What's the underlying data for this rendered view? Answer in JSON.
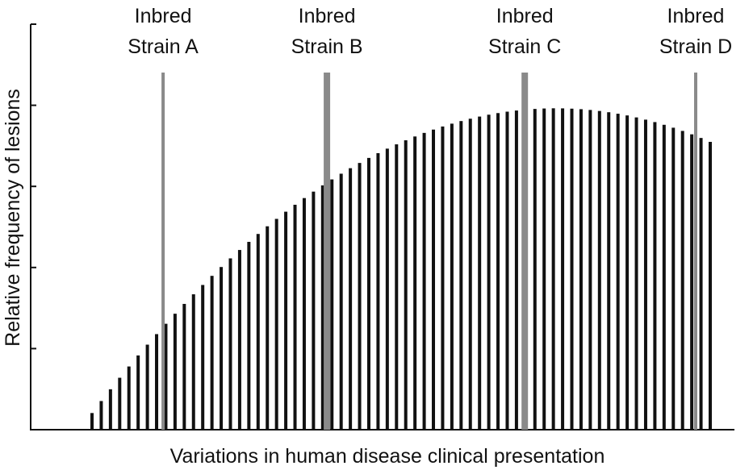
{
  "chart_data": {
    "type": "bar",
    "title": "",
    "xlabel": "Variations in human disease clinical presentation",
    "ylabel": "Relative frequency of lesions",
    "y_ticks": 5,
    "bar_count": 68,
    "distribution": "parabolic",
    "values": [
      0.0411,
      0.0707,
      0.0997,
      0.1281,
      0.1559,
      0.1831,
      0.2097,
      0.2357,
      0.2612,
      0.286,
      0.3102,
      0.3339,
      0.3569,
      0.3794,
      0.4012,
      0.4225,
      0.4432,
      0.4632,
      0.4827,
      0.5016,
      0.5199,
      0.5376,
      0.5547,
      0.5712,
      0.5871,
      0.6025,
      0.6172,
      0.6313,
      0.6449,
      0.6578,
      0.6702,
      0.682,
      0.6931,
      0.7037,
      0.7137,
      0.7231,
      0.7319,
      0.7401,
      0.7477,
      0.7547,
      0.7611,
      0.7669,
      0.7722,
      0.7768,
      0.7808,
      0.7843,
      0.7871,
      0.7894,
      0.791,
      0.7921,
      0.7926,
      0.7924,
      0.7917,
      0.7904,
      0.7885,
      0.786,
      0.7829,
      0.7792,
      0.775,
      0.7701,
      0.7646,
      0.7586,
      0.7519,
      0.7447,
      0.7368,
      0.7284,
      0.7194,
      0.7098
    ],
    "strains": [
      {
        "label_line1": "Inbred",
        "label_line2": "Strain A",
        "position": 0.115
      },
      {
        "label_line1": "Inbred",
        "label_line2": "Strain B",
        "position": 0.38
      },
      {
        "label_line1": "Inbred",
        "label_line2": "Strain C",
        "position": 0.7
      },
      {
        "label_line1": "Inbred",
        "label_line2": "Strain D",
        "position": 1.0
      }
    ],
    "colors": {
      "bars": "#111111",
      "strain_lines": "#8a8a8a",
      "axis": "#111111"
    }
  }
}
